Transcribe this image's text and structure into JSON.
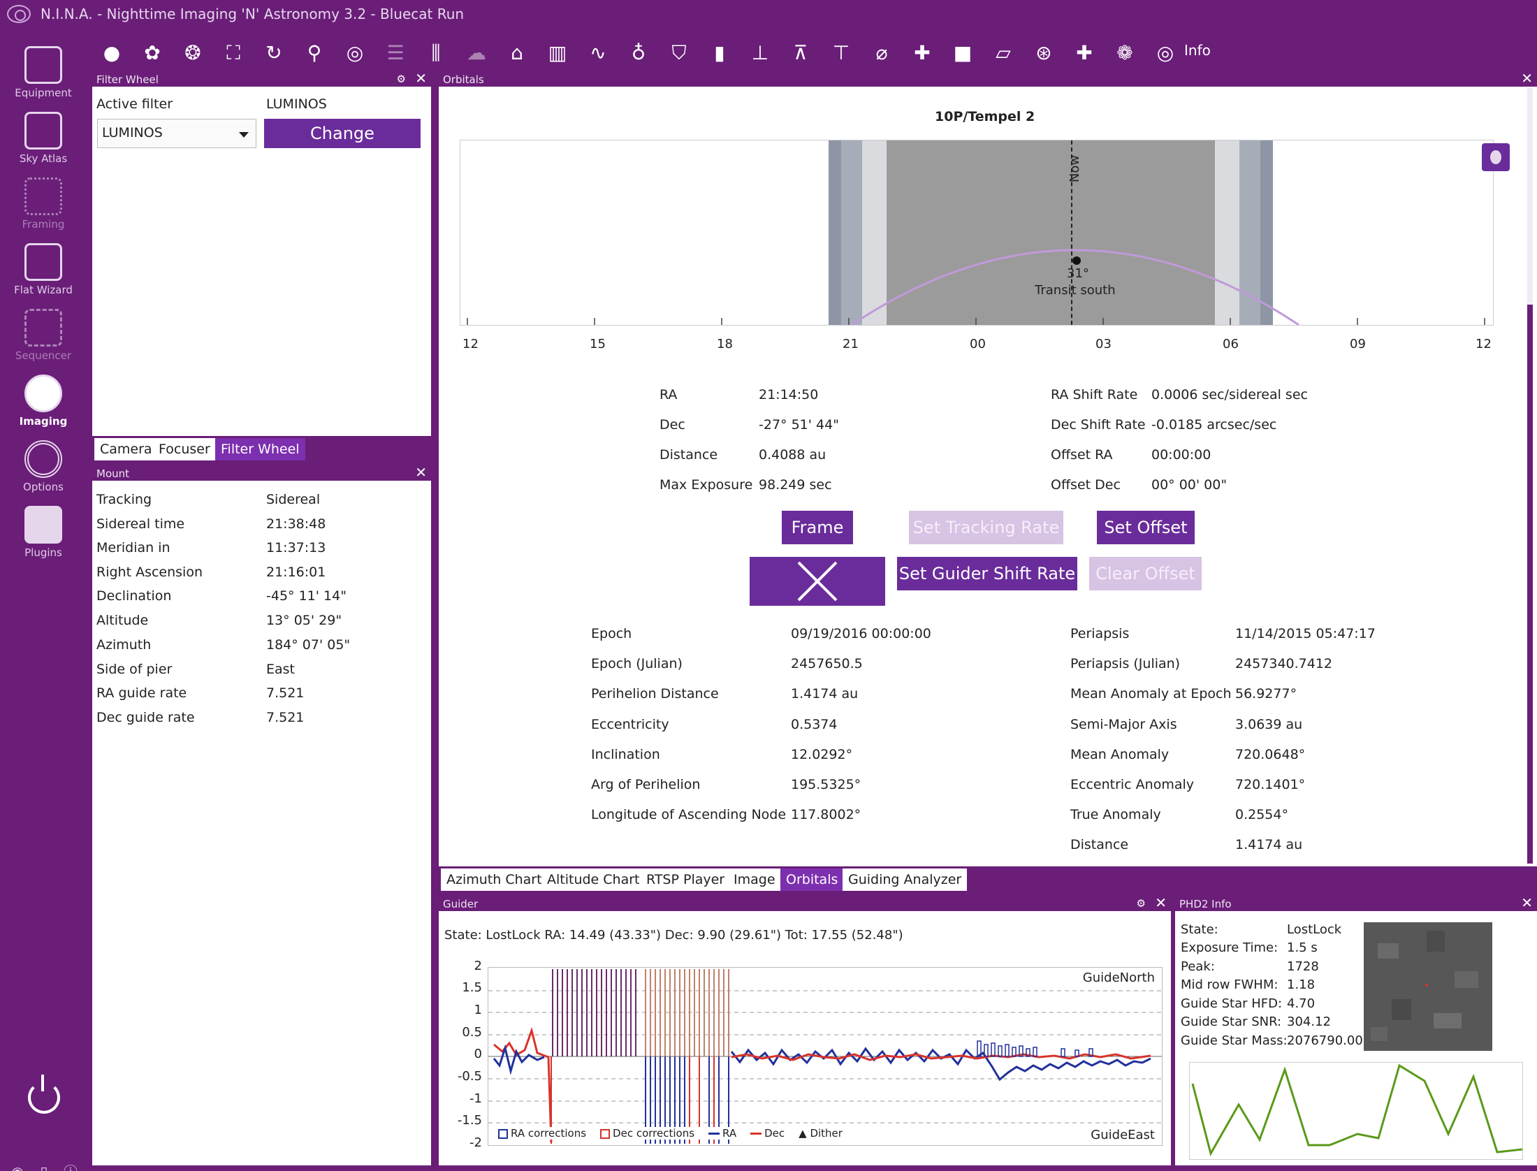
{
  "title_bar": {
    "title": "N.I.N.A. - Nighttime Imaging 'N' Astronomy 3.2  -  Bluecat Run"
  },
  "nav": {
    "items": [
      {
        "label": "Equipment",
        "icon": "telescope-icon"
      },
      {
        "label": "Sky Atlas",
        "icon": "map-icon"
      },
      {
        "label": "Framing",
        "icon": "stars-icon"
      },
      {
        "label": "Flat Wizard",
        "icon": "flat-wizard-icon"
      },
      {
        "label": "Sequencer",
        "icon": "sequencer-icon"
      },
      {
        "label": "Imaging",
        "icon": "imaging-icon"
      },
      {
        "label": "Options",
        "icon": "gear-icon"
      },
      {
        "label": "Plugins",
        "icon": "puzzle-icon"
      }
    ]
  },
  "toolbar": {
    "info_label": "Info"
  },
  "filter_wheel": {
    "header": "Filter Wheel",
    "active_filter_label": "Active filter",
    "active_filter_value": "LUMINOS",
    "selected_filter": "LUMINOS",
    "change_button": "Change"
  },
  "left_tabs": [
    "Camera",
    "Focuser",
    "Filter Wheel"
  ],
  "mount": {
    "header": "Mount",
    "rows": [
      {
        "label": "Tracking",
        "value": "Sidereal"
      },
      {
        "label": "Sidereal time",
        "value": "21:38:48"
      },
      {
        "label": "Meridian in",
        "value": "11:37:13"
      },
      {
        "label": "Right Ascension",
        "value": "21:16:01"
      },
      {
        "label": "Declination",
        "value": "-45° 11' 14\""
      },
      {
        "label": "Altitude",
        "value": "13° 05' 29\""
      },
      {
        "label": "Azimuth",
        "value": "184° 07' 05\""
      },
      {
        "label": "Side of pier",
        "value": "East"
      },
      {
        "label": "RA guide rate",
        "value": "7.521"
      },
      {
        "label": "Dec guide rate",
        "value": "7.521"
      }
    ]
  },
  "orbitals": {
    "header": "Orbitals",
    "object_name": "10P/Tempel 2",
    "now_label": "Now",
    "transit_altitude": "31°",
    "transit_label": "Transit south",
    "x_ticks": [
      "12",
      "15",
      "18",
      "21",
      "00",
      "03",
      "06",
      "09",
      "12"
    ],
    "left_info": [
      {
        "label": "RA",
        "value": "21:14:50"
      },
      {
        "label": "Dec",
        "value": "-27° 51' 44\""
      },
      {
        "label": "Distance",
        "value": "0.4088 au"
      },
      {
        "label": "Max Exposure",
        "value": "98.249 sec"
      }
    ],
    "right_info": [
      {
        "label": "RA Shift Rate",
        "value": "0.0006 sec/sidereal sec"
      },
      {
        "label": "Dec Shift Rate",
        "value": "-0.0185 arcsec/sec"
      },
      {
        "label": "Offset RA",
        "value": "00:00:00"
      },
      {
        "label": "Offset Dec",
        "value": "00° 00' 00\""
      }
    ],
    "buttons": {
      "frame": "Frame",
      "set_tracking_rate": "Set Tracking Rate",
      "set_offset": "Set Offset",
      "set_guider_shift_rate": "Set Guider Shift Rate",
      "clear_offset": "Clear Offset"
    },
    "elements_left": [
      {
        "label": "Epoch",
        "value": "09/19/2016 00:00:00"
      },
      {
        "label": "Epoch (Julian)",
        "value": "2457650.5"
      },
      {
        "label": "Perihelion Distance",
        "value": "1.4174 au"
      },
      {
        "label": "Eccentricity",
        "value": "0.5374"
      },
      {
        "label": "Inclination",
        "value": "12.0292°"
      },
      {
        "label": "Arg of Perihelion",
        "value": "195.5325°"
      },
      {
        "label": "Longitude of Ascending Node",
        "value": "117.8002°"
      }
    ],
    "elements_right": [
      {
        "label": "Periapsis",
        "value": "11/14/2015 05:47:17"
      },
      {
        "label": "Periapsis (Julian)",
        "value": "2457340.7412"
      },
      {
        "label": "Mean Anomaly at Epoch",
        "value": "56.9277°"
      },
      {
        "label": "Semi-Major Axis",
        "value": "3.0639 au"
      },
      {
        "label": "Mean Anomaly",
        "value": "720.0648°"
      },
      {
        "label": "Eccentric Anomaly",
        "value": "720.1401°"
      },
      {
        "label": "True Anomaly",
        "value": "0.2554°"
      },
      {
        "label": "Distance",
        "value": "1.4174 au"
      }
    ]
  },
  "center_tabs": [
    "Azimuth Chart",
    "Altitude Chart",
    "RTSP Player",
    "Image",
    "Orbitals",
    "Guiding Analyzer"
  ],
  "guider": {
    "header": "Guider",
    "state_line": "State: LostLock  RA: 14.49 (43.33\")  Dec: 9.90 (29.61\")  Tot: 17.55 (52.48\")",
    "y_ticks": [
      "2",
      "1.5",
      "1",
      "0.5",
      "0",
      "-0.5",
      "-1",
      "-1.5",
      "-2"
    ],
    "guide_north": "GuideNorth",
    "guide_east": "GuideEast",
    "legend": [
      "RA corrections",
      "Dec corrections",
      "RA",
      "Dec",
      "Dither"
    ],
    "colors": {
      "ra": "#22319a",
      "dec": "#d8332a"
    }
  },
  "phd2": {
    "header": "PHD2 Info",
    "rows": [
      {
        "label": "State:",
        "value": "LostLock"
      },
      {
        "label": "Exposure Time:",
        "value": "1.5 s"
      },
      {
        "label": "Peak:",
        "value": "1728"
      },
      {
        "label": "Mid row FWHM:",
        "value": "1.18"
      },
      {
        "label": "Guide Star HFD:",
        "value": "4.70"
      },
      {
        "label": "Guide Star SNR:",
        "value": "304.12"
      },
      {
        "label": "Guide Star Mass:",
        "value": "2076790.00"
      }
    ]
  },
  "colors": {
    "accent": "#6a1e78",
    "button": "#6a2c9a"
  }
}
